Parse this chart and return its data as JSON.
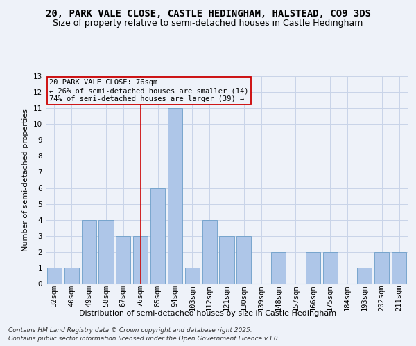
{
  "title": "20, PARK VALE CLOSE, CASTLE HEDINGHAM, HALSTEAD, CO9 3DS",
  "subtitle": "Size of property relative to semi-detached houses in Castle Hedingham",
  "xlabel": "Distribution of semi-detached houses by size in Castle Hedingham",
  "ylabel": "Number of semi-detached properties",
  "categories": [
    "32sqm",
    "40sqm",
    "49sqm",
    "58sqm",
    "67sqm",
    "76sqm",
    "85sqm",
    "94sqm",
    "103sqm",
    "112sqm",
    "121sqm",
    "130sqm",
    "139sqm",
    "148sqm",
    "157sqm",
    "166sqm",
    "175sqm",
    "184sqm",
    "193sqm",
    "202sqm",
    "211sqm"
  ],
  "values": [
    1,
    1,
    4,
    4,
    3,
    3,
    6,
    11,
    1,
    4,
    3,
    3,
    0,
    2,
    0,
    2,
    2,
    0,
    1,
    2,
    2
  ],
  "bar_color": "#aec6e8",
  "bar_edge_color": "#6b9ec8",
  "highlight_index": 5,
  "highlight_color": "#cc0000",
  "ylim": [
    0,
    13
  ],
  "yticks": [
    0,
    1,
    2,
    3,
    4,
    5,
    6,
    7,
    8,
    9,
    10,
    11,
    12,
    13
  ],
  "annotation_text": "20 PARK VALE CLOSE: 76sqm\n← 26% of semi-detached houses are smaller (14)\n74% of semi-detached houses are larger (39) →",
  "annotation_box_color": "#cc0000",
  "footer1": "Contains HM Land Registry data © Crown copyright and database right 2025.",
  "footer2": "Contains public sector information licensed under the Open Government Licence v3.0.",
  "bg_color": "#eef2f9",
  "grid_color": "#c8d4e8",
  "title_fontsize": 10,
  "subtitle_fontsize": 9,
  "axis_label_fontsize": 8,
  "tick_fontsize": 7.5,
  "annotation_fontsize": 7.5,
  "footer_fontsize": 6.5
}
